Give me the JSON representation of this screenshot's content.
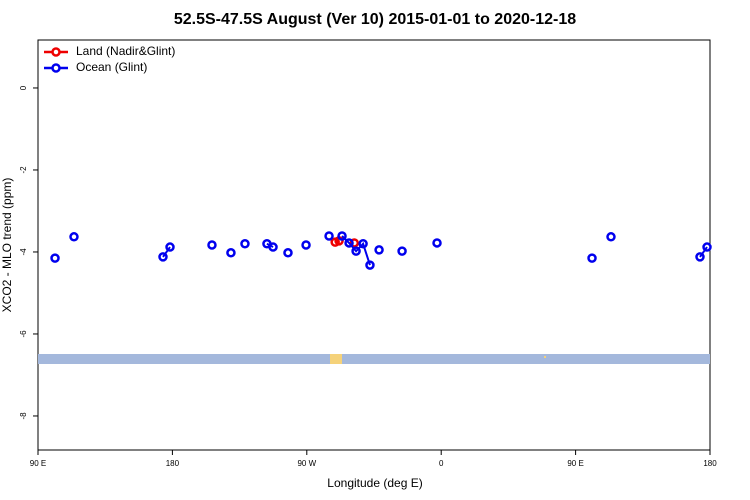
{
  "chart_data": {
    "type": "line",
    "title": "52.5S-47.5S August (Ver 10)   2015-01-01 to 2020-12-18",
    "x_label": "Longitude (deg E)",
    "y_label": "XCO2 - MLO trend (ppm)",
    "xlim": [
      90,
      540
    ],
    "ylim": [
      -8.83,
      1.17
    ],
    "xticks": [
      {
        "value": 90,
        "label": "90 E"
      },
      {
        "value": 180,
        "label": "180"
      },
      {
        "value": 270,
        "label": "90 W"
      },
      {
        "value": 360,
        "label": "0"
      },
      {
        "value": 450,
        "label": "90 E"
      },
      {
        "value": 540,
        "label": "180"
      }
    ],
    "yticks": [
      0,
      -2,
      -4,
      -6,
      -8
    ],
    "legend": "top-left",
    "series": [
      {
        "name": "Land (Nadir&Glint)",
        "color": "#ee0000",
        "x": [
          289.0,
          291.6,
          301.8
        ],
        "values": [
          -3.76,
          -3.73,
          -3.78
        ]
      },
      {
        "name": "Ocean (Glint)",
        "color": "#0000ee",
        "x": [
          101.4,
          114.1,
          173.7,
          178.4,
          206.5,
          219.2,
          228.6,
          243.3,
          247.4,
          257.4,
          269.5,
          284.9,
          293.6,
          298.3,
          303.0,
          307.7,
          312.3,
          318.4,
          333.8,
          357.2,
          461.0,
          473.7,
          533.3,
          538.0
        ],
        "values": [
          -4.15,
          -3.63,
          -4.12,
          -3.88,
          -3.83,
          -4.02,
          -3.8,
          -3.8,
          -3.88,
          -4.02,
          -3.83,
          -3.61,
          -3.61,
          -3.78,
          -3.98,
          -3.8,
          -4.32,
          -3.95,
          -3.98,
          -3.78,
          -4.15,
          -3.63,
          -4.12,
          -3.88
        ]
      }
    ]
  }
}
